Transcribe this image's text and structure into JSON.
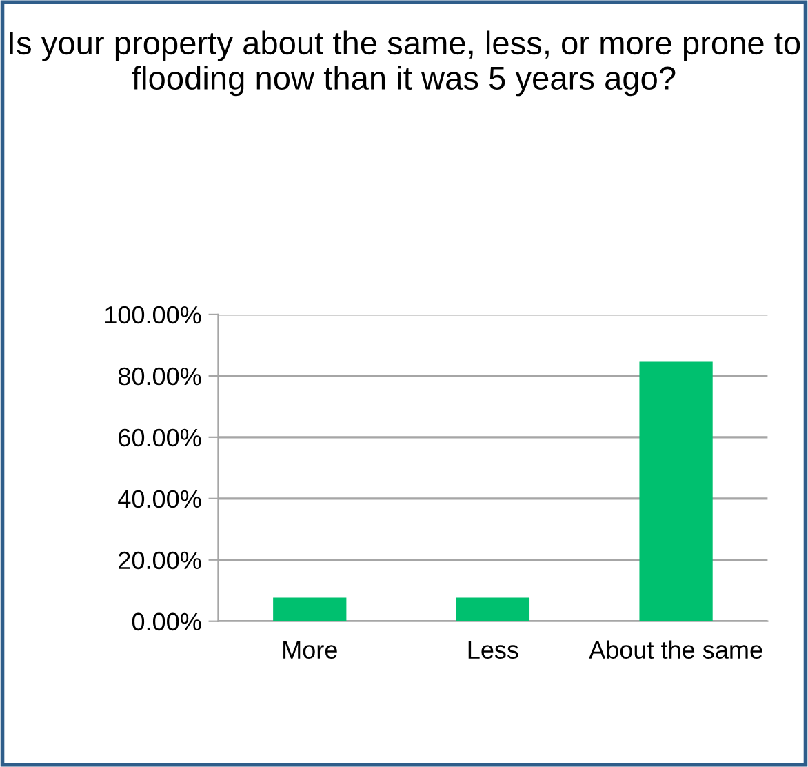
{
  "chart_data": {
    "type": "bar",
    "title": "Is your property about the same, less, or more prone to flooding now than it was 5 years ago?",
    "categories": [
      "More",
      "Less",
      "About the same"
    ],
    "values": [
      7.7,
      7.7,
      84.6
    ],
    "color": "#00c06f",
    "ylim": [
      0,
      100
    ],
    "yticks": [
      {
        "value": 0,
        "label": "0.00%"
      },
      {
        "value": 20,
        "label": "20.00%"
      },
      {
        "value": 40,
        "label": "40.00%"
      },
      {
        "value": 60,
        "label": "60.00%"
      },
      {
        "value": 80,
        "label": "80.00%"
      },
      {
        "value": 100,
        "label": "100.00%"
      }
    ],
    "grid": "y",
    "legend": false
  }
}
